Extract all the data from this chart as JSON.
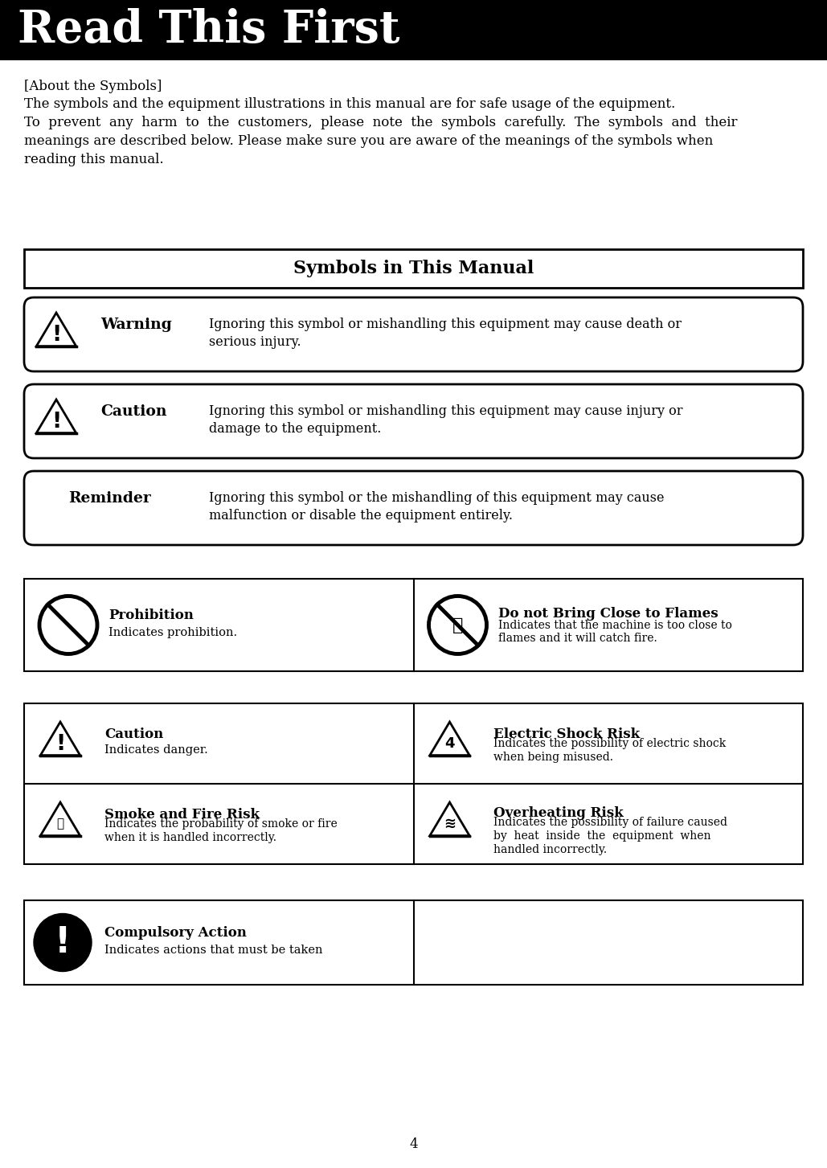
{
  "title": "Read This First",
  "title_bg": "#000000",
  "title_color": "#ffffff",
  "page_bg": "#ffffff",
  "about_header": "[About the Symbols]",
  "about_lines": [
    "The symbols and the equipment illustrations in this manual are for safe usage of the equipment.",
    "To  prevent  any  harm  to  the  customers,  please  note  the  symbols  carefully.  The  symbols  and  their",
    "meanings are described below. Please make sure you are aware of the meanings of the symbols when",
    "reading this manual."
  ],
  "section_title": "Symbols in This Manual",
  "warning_label": "Warning",
  "warning_text": [
    "Ignoring this symbol or mishandling this equipment may cause death or",
    "serious injury."
  ],
  "caution_label": "Caution",
  "caution_text": [
    "Ignoring this symbol or mishandling this equipment may cause injury or",
    "damage to the equipment."
  ],
  "reminder_label": "Reminder",
  "reminder_text": [
    "Ignoring this symbol or the mishandling of this equipment may cause",
    "malfunction or disable the equipment entirely."
  ],
  "prohibition_label": "Prohibition",
  "prohibition_desc": "Indicates prohibition.",
  "flames_label": "Do not Bring Close to Flames",
  "flames_desc": [
    "Indicates that the machine is too close to",
    "flames and it will catch fire."
  ],
  "caution2_label": "Caution",
  "caution2_desc": "Indicates danger.",
  "electric_label": "Electric Shock Risk",
  "electric_desc": [
    "Indicates the possibility of electric shock",
    "when being misused."
  ],
  "smoke_label": "Smoke and Fire Risk",
  "smoke_desc": [
    "Indicates the probability of smoke or fire",
    "when it is handled incorrectly."
  ],
  "overheat_label": "Overheating Risk",
  "overheat_desc": [
    "Indicates the possibility of failure caused",
    "by  heat  inside  the  equipment  when",
    "handled incorrectly."
  ],
  "compulsory_label": "Compulsory Action",
  "compulsory_desc": "Indicates actions that must be taken",
  "page_number": "4"
}
